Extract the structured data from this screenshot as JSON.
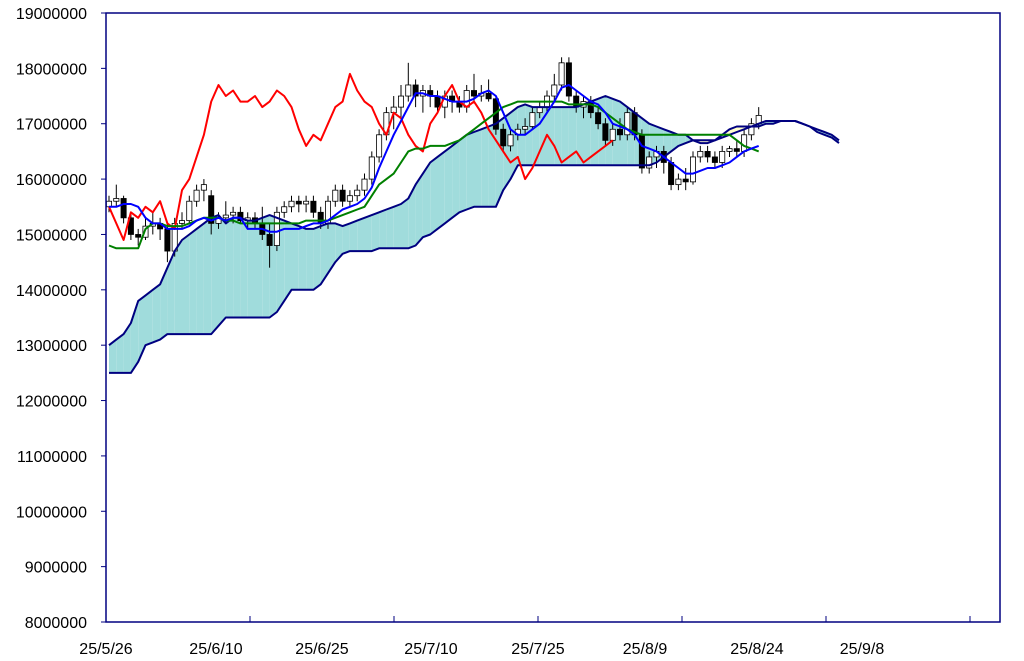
{
  "chart_data": {
    "type": "candlestick-ichimoku",
    "y_ticks": [
      "19000000",
      "18000000",
      "17000000",
      "16000000",
      "15000000",
      "14000000",
      "13000000",
      "12000000",
      "11000000",
      "10000000",
      "9000000",
      "8000000"
    ],
    "x_ticks": [
      "25/5/26",
      "25/6/10",
      "25/6/25",
      "25/7/10",
      "25/7/25",
      "25/8/9",
      "25/8/24",
      "25/9/8"
    ],
    "ylim": [
      8000000,
      19000000
    ],
    "colors": {
      "tenkan": "#0000ff",
      "kijun": "#008000",
      "chikou": "#ff0000",
      "span_line": "#000080",
      "cloud_bull": "#a0dcdc",
      "cloud_bear": "#ffffcc",
      "candle_up": "#ffffff",
      "candle_down": "#000000"
    },
    "candles": [
      [
        15500000,
        15700000,
        15400000,
        15600000
      ],
      [
        15600000,
        15900000,
        15500000,
        15650000
      ],
      [
        15650000,
        15700000,
        15200000,
        15300000
      ],
      [
        15300000,
        15400000,
        14900000,
        15000000
      ],
      [
        15000000,
        15100000,
        14800000,
        14950000
      ],
      [
        14950000,
        15300000,
        14900000,
        15150000
      ],
      [
        15150000,
        15400000,
        15000000,
        15200000
      ],
      [
        15200000,
        15300000,
        14900000,
        15100000
      ],
      [
        15100000,
        15200000,
        14500000,
        14700000
      ],
      [
        14700000,
        15300000,
        14600000,
        15200000
      ],
      [
        15200000,
        15400000,
        15100000,
        15250000
      ],
      [
        15250000,
        15700000,
        15200000,
        15600000
      ],
      [
        15600000,
        15900000,
        15500000,
        15800000
      ],
      [
        15800000,
        16000000,
        15600000,
        15900000
      ],
      [
        15700000,
        15800000,
        15000000,
        15200000
      ],
      [
        15200000,
        15400000,
        15100000,
        15300000
      ],
      [
        15300000,
        15600000,
        15200000,
        15350000
      ],
      [
        15350000,
        15500000,
        15200000,
        15400000
      ],
      [
        15400000,
        15500000,
        15200000,
        15250000
      ],
      [
        15250000,
        15400000,
        15100000,
        15300000
      ],
      [
        15300000,
        15400000,
        15100000,
        15200000
      ],
      [
        15200000,
        15500000,
        14900000,
        15000000
      ],
      [
        15000000,
        15200000,
        14400000,
        14800000
      ],
      [
        14800000,
        15500000,
        14700000,
        15400000
      ],
      [
        15400000,
        15600000,
        15300000,
        15500000
      ],
      [
        15500000,
        15700000,
        15400000,
        15600000
      ],
      [
        15600000,
        15700000,
        15400000,
        15550000
      ],
      [
        15550000,
        15700000,
        15400000,
        15600000
      ],
      [
        15600000,
        15700000,
        15300000,
        15400000
      ],
      [
        15400000,
        15500000,
        15100000,
        15200000
      ],
      [
        15200000,
        15700000,
        15100000,
        15600000
      ],
      [
        15600000,
        15900000,
        15500000,
        15800000
      ],
      [
        15800000,
        15900000,
        15500000,
        15600000
      ],
      [
        15600000,
        15800000,
        15500000,
        15700000
      ],
      [
        15700000,
        15900000,
        15600000,
        15800000
      ],
      [
        15800000,
        16100000,
        15700000,
        16000000
      ],
      [
        16000000,
        16500000,
        15900000,
        16400000
      ],
      [
        16400000,
        16900000,
        16300000,
        16800000
      ],
      [
        16800000,
        17300000,
        16700000,
        17200000
      ],
      [
        17200000,
        17500000,
        16900000,
        17300000
      ],
      [
        17300000,
        17700000,
        17100000,
        17500000
      ],
      [
        17500000,
        18100000,
        17400000,
        17700000
      ],
      [
        17700000,
        17800000,
        17300000,
        17500000
      ],
      [
        17500000,
        17700000,
        17200000,
        17600000
      ],
      [
        17600000,
        17700000,
        17300000,
        17500000
      ],
      [
        17500000,
        17600000,
        17200000,
        17300000
      ],
      [
        17300000,
        17600000,
        17100000,
        17500000
      ],
      [
        17500000,
        17600000,
        17200000,
        17400000
      ],
      [
        17400000,
        17500000,
        17200000,
        17300000
      ],
      [
        17300000,
        17700000,
        17200000,
        17600000
      ],
      [
        17600000,
        17900000,
        17400000,
        17500000
      ],
      [
        17500000,
        17700000,
        17400000,
        17550000
      ],
      [
        17550000,
        17800000,
        17400000,
        17450000
      ],
      [
        17450000,
        17500000,
        16800000,
        16900000
      ],
      [
        16900000,
        17000000,
        16500000,
        16600000
      ],
      [
        16600000,
        16900000,
        16500000,
        16800000
      ],
      [
        16800000,
        17000000,
        16700000,
        16900000
      ],
      [
        16900000,
        17100000,
        16800000,
        16950000
      ],
      [
        16950000,
        17300000,
        16900000,
        17200000
      ],
      [
        17200000,
        17400000,
        17100000,
        17300000
      ],
      [
        17300000,
        17600000,
        17200000,
        17500000
      ],
      [
        17500000,
        17900000,
        17400000,
        17700000
      ],
      [
        17700000,
        18200000,
        17600000,
        18100000
      ],
      [
        18100000,
        18200000,
        17400000,
        17500000
      ],
      [
        17500000,
        17600000,
        17200000,
        17300000
      ],
      [
        17300000,
        17500000,
        17100000,
        17400000
      ],
      [
        17400000,
        17500000,
        17100000,
        17200000
      ],
      [
        17200000,
        17300000,
        16900000,
        17000000
      ],
      [
        17000000,
        17100000,
        16600000,
        16700000
      ],
      [
        16700000,
        17000000,
        16600000,
        16900000
      ],
      [
        16900000,
        17100000,
        16700000,
        16800000
      ],
      [
        16800000,
        17300000,
        16700000,
        17200000
      ],
      [
        17200000,
        17300000,
        16700000,
        16800000
      ],
      [
        16800000,
        16900000,
        16100000,
        16200000
      ],
      [
        16200000,
        16500000,
        16100000,
        16400000
      ],
      [
        16400000,
        16600000,
        16200000,
        16500000
      ],
      [
        16500000,
        16600000,
        16100000,
        16300000
      ],
      [
        16300000,
        16400000,
        15800000,
        15900000
      ],
      [
        15900000,
        16100000,
        15800000,
        16000000
      ],
      [
        16000000,
        16200000,
        15800000,
        15950000
      ],
      [
        15950000,
        16500000,
        15900000,
        16400000
      ],
      [
        16400000,
        16600000,
        16300000,
        16500000
      ],
      [
        16500000,
        16600000,
        16300000,
        16400000
      ],
      [
        16400000,
        16500000,
        16200000,
        16300000
      ],
      [
        16300000,
        16600000,
        16200000,
        16500000
      ],
      [
        16500000,
        16600000,
        16400000,
        16550000
      ],
      [
        16550000,
        16700000,
        16400000,
        16500000
      ],
      [
        16500000,
        16900000,
        16400000,
        16800000
      ],
      [
        16800000,
        17100000,
        16700000,
        17000000
      ],
      [
        17000000,
        17300000,
        16900000,
        17150000
      ]
    ],
    "tenkan": [
      15500000,
      15500000,
      15550000,
      15550000,
      15500000,
      15300000,
      15200000,
      15200000,
      15100000,
      15100000,
      15100000,
      15150000,
      15250000,
      15300000,
      15250000,
      15300000,
      15250000,
      15300000,
      15300000,
      15100000,
      15100000,
      15100000,
      15050000,
      15050000,
      15100000,
      15100000,
      15100000,
      15150000,
      15200000,
      15200000,
      15250000,
      15350000,
      15450000,
      15500000,
      15550000,
      15650000,
      15850000,
      16200000,
      16500000,
      16800000,
      17050000,
      17300000,
      17550000,
      17550000,
      17500000,
      17500000,
      17450000,
      17400000,
      17400000,
      17400000,
      17450000,
      17550000,
      17600000,
      17500000,
      17200000,
      16900000,
      16800000,
      16800000,
      16900000,
      17000000,
      17200000,
      17400000,
      17650000,
      17700000,
      17600000,
      17500000,
      17400000,
      17350000,
      17200000,
      17000000,
      16950000,
      16900000,
      16800000,
      16600000,
      16550000,
      16500000,
      16400000,
      16300000,
      16200000,
      16100000,
      16100000,
      16150000,
      16200000,
      16200000,
      16250000,
      16300000,
      16400000,
      16500000,
      16550000,
      16600000
    ],
    "kijun": [
      14800000,
      14750000,
      14750000,
      14750000,
      14750000,
      15100000,
      15200000,
      15200000,
      15150000,
      15150000,
      15150000,
      15200000,
      15250000,
      15300000,
      15300000,
      15300000,
      15250000,
      15250000,
      15200000,
      15200000,
      15200000,
      15200000,
      15200000,
      15200000,
      15200000,
      15200000,
      15200000,
      15250000,
      15250000,
      15250000,
      15250000,
      15300000,
      15350000,
      15400000,
      15450000,
      15500000,
      15700000,
      15900000,
      16000000,
      16100000,
      16300000,
      16500000,
      16550000,
      16550000,
      16600000,
      16600000,
      16600000,
      16650000,
      16700000,
      16800000,
      16900000,
      17000000,
      17100000,
      17200000,
      17300000,
      17350000,
      17400000,
      17400000,
      17400000,
      17400000,
      17400000,
      17400000,
      17400000,
      17350000,
      17350000,
      17350000,
      17350000,
      17300000,
      17200000,
      17100000,
      17000000,
      16900000,
      16850000,
      16800000,
      16800000,
      16800000,
      16800000,
      16800000,
      16800000,
      16800000,
      16800000,
      16800000,
      16800000,
      16800000,
      16800000,
      16800000,
      16700000,
      16600000,
      16550000,
      16500000
    ],
    "chikou": [
      15500000,
      15200000,
      14900000,
      15400000,
      15300000,
      15500000,
      15400000,
      15600000,
      15200000,
      15100000,
      15800000,
      16000000,
      16400000,
      16800000,
      17400000,
      17700000,
      17500000,
      17600000,
      17400000,
      17400000,
      17500000,
      17300000,
      17400000,
      17600000,
      17500000,
      17300000,
      16900000,
      16600000,
      16800000,
      16700000,
      17000000,
      17300000,
      17400000,
      17900000,
      17600000,
      17400000,
      17300000,
      17000000,
      16800000,
      17200000,
      17100000,
      16800000,
      16600000,
      16500000,
      17000000,
      17200000,
      17500000,
      17700000,
      17400000,
      17300000,
      17400000,
      17200000,
      16900000,
      16700000,
      16500000,
      16300000,
      16400000,
      16000000,
      16200000,
      16500000,
      16800000,
      16600000,
      16300000,
      16400000,
      16500000,
      16300000,
      16400000,
      16500000,
      16600000,
      16700000
    ],
    "span_a": [
      13000000,
      13100000,
      13200000,
      13400000,
      13800000,
      13900000,
      14000000,
      14100000,
      14400000,
      14700000,
      14900000,
      15000000,
      15100000,
      15200000,
      15300000,
      15350000,
      15200000,
      15300000,
      15300000,
      15250000,
      15250000,
      15300000,
      15350000,
      15300000,
      15250000,
      15200000,
      15150000,
      15100000,
      15100000,
      15150000,
      15200000,
      15200000,
      15150000,
      15200000,
      15250000,
      15300000,
      15350000,
      15400000,
      15450000,
      15500000,
      15550000,
      15650000,
      15900000,
      16100000,
      16300000,
      16400000,
      16500000,
      16600000,
      16700000,
      16800000,
      16850000,
      16900000,
      16950000,
      17000000,
      17100000,
      17200000,
      17300000,
      17350000,
      17300000,
      17300000,
      17300000,
      17300000,
      17300000,
      17300000,
      17300000,
      17350000,
      17400000,
      17450000,
      17500000,
      17450000,
      17400000,
      17300000,
      17200000,
      17100000,
      17000000,
      16950000,
      16900000,
      16850000,
      16800000,
      16800000,
      16700000,
      16650000,
      16650000,
      16700000,
      16750000,
      16800000,
      16850000,
      16900000,
      16950000,
      17000000,
      17050000,
      17050000,
      17050000,
      17050000,
      17050000,
      17000000,
      16950000,
      16900000,
      16850000,
      16800000,
      16700000
    ],
    "span_b": [
      12500000,
      12500000,
      12500000,
      12500000,
      12700000,
      13000000,
      13050000,
      13100000,
      13200000,
      13200000,
      13200000,
      13200000,
      13200000,
      13200000,
      13200000,
      13350000,
      13500000,
      13500000,
      13500000,
      13500000,
      13500000,
      13500000,
      13500000,
      13600000,
      13800000,
      14000000,
      14000000,
      14000000,
      14000000,
      14100000,
      14300000,
      14500000,
      14650000,
      14700000,
      14700000,
      14700000,
      14700000,
      14750000,
      14750000,
      14750000,
      14750000,
      14750000,
      14800000,
      14950000,
      15000000,
      15100000,
      15200000,
      15300000,
      15400000,
      15450000,
      15500000,
      15500000,
      15500000,
      15500000,
      15800000,
      16000000,
      16250000,
      16250000,
      16250000,
      16250000,
      16250000,
      16250000,
      16250000,
      16250000,
      16250000,
      16250000,
      16250000,
      16250000,
      16250000,
      16250000,
      16250000,
      16250000,
      16250000,
      16250000,
      16250000,
      16300000,
      16400000,
      16500000,
      16600000,
      16650000,
      16700000,
      16700000,
      16700000,
      16700000,
      16800000,
      16900000,
      16950000,
      16950000,
      16950000,
      16950000,
      17000000,
      17000000,
      17050000,
      17050000,
      17050000,
      17000000,
      16950000,
      16850000,
      16800000,
      16750000,
      16650000
    ]
  }
}
